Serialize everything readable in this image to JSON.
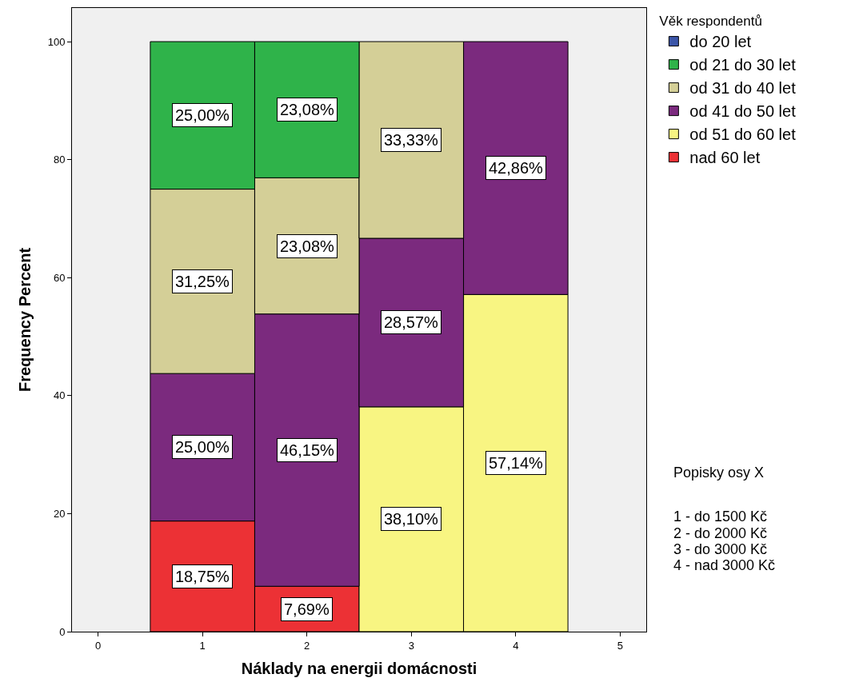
{
  "chart_data": {
    "type": "bar",
    "stacked": true,
    "xlabel": "Náklady na energii domácnosti",
    "ylabel": "Frequency Percent",
    "legend_title": "Věk respondentů",
    "legend": "right",
    "x": [
      1,
      2,
      3,
      4
    ],
    "xlim": [
      -0.25,
      5.25
    ],
    "xticks": [
      0,
      1,
      2,
      3,
      4,
      5
    ],
    "ylim": [
      0,
      105.7
    ],
    "yticks": [
      0,
      20,
      40,
      60,
      80,
      100
    ],
    "grid": false,
    "series": [
      {
        "name": "nad 60 let",
        "color": "#ec3135",
        "values": [
          18.75,
          7.69,
          null,
          null
        ],
        "value_labels": [
          "18,75%",
          "7,69%",
          null,
          null
        ]
      },
      {
        "name": "od 51 do 60 let",
        "color": "#f8f582",
        "values": [
          null,
          null,
          38.1,
          57.14
        ],
        "value_labels": [
          null,
          null,
          "38,10%",
          "57,14%"
        ]
      },
      {
        "name": "od 41 do 50 let",
        "color": "#7b2a7e",
        "values": [
          25.0,
          46.15,
          28.57,
          42.86
        ],
        "value_labels": [
          "25,00%",
          "46,15%",
          "28,57%",
          "42,86%"
        ]
      },
      {
        "name": "od 31 do 40 let",
        "color": "#d4cf97",
        "values": [
          31.25,
          23.08,
          33.33,
          null
        ],
        "value_labels": [
          "31,25%",
          "23,08%",
          "33,33%",
          null
        ]
      },
      {
        "name": "od 21 do 30 let",
        "color": "#2fb34a",
        "values": [
          25.0,
          23.08,
          null,
          null
        ],
        "value_labels": [
          "25,00%",
          "23,08%",
          null,
          null
        ]
      },
      {
        "name": "do 20 let",
        "color": "#3b55a8",
        "values": [
          null,
          null,
          null,
          null
        ],
        "value_labels": [
          null,
          null,
          null,
          null
        ]
      }
    ],
    "annotations": [
      "Popisky osy X",
      "1 - do 1500 Kč",
      "2 - do 2000 Kč",
      "3 - do 3000 Kč",
      "4 - nad 3000 Kč"
    ]
  }
}
